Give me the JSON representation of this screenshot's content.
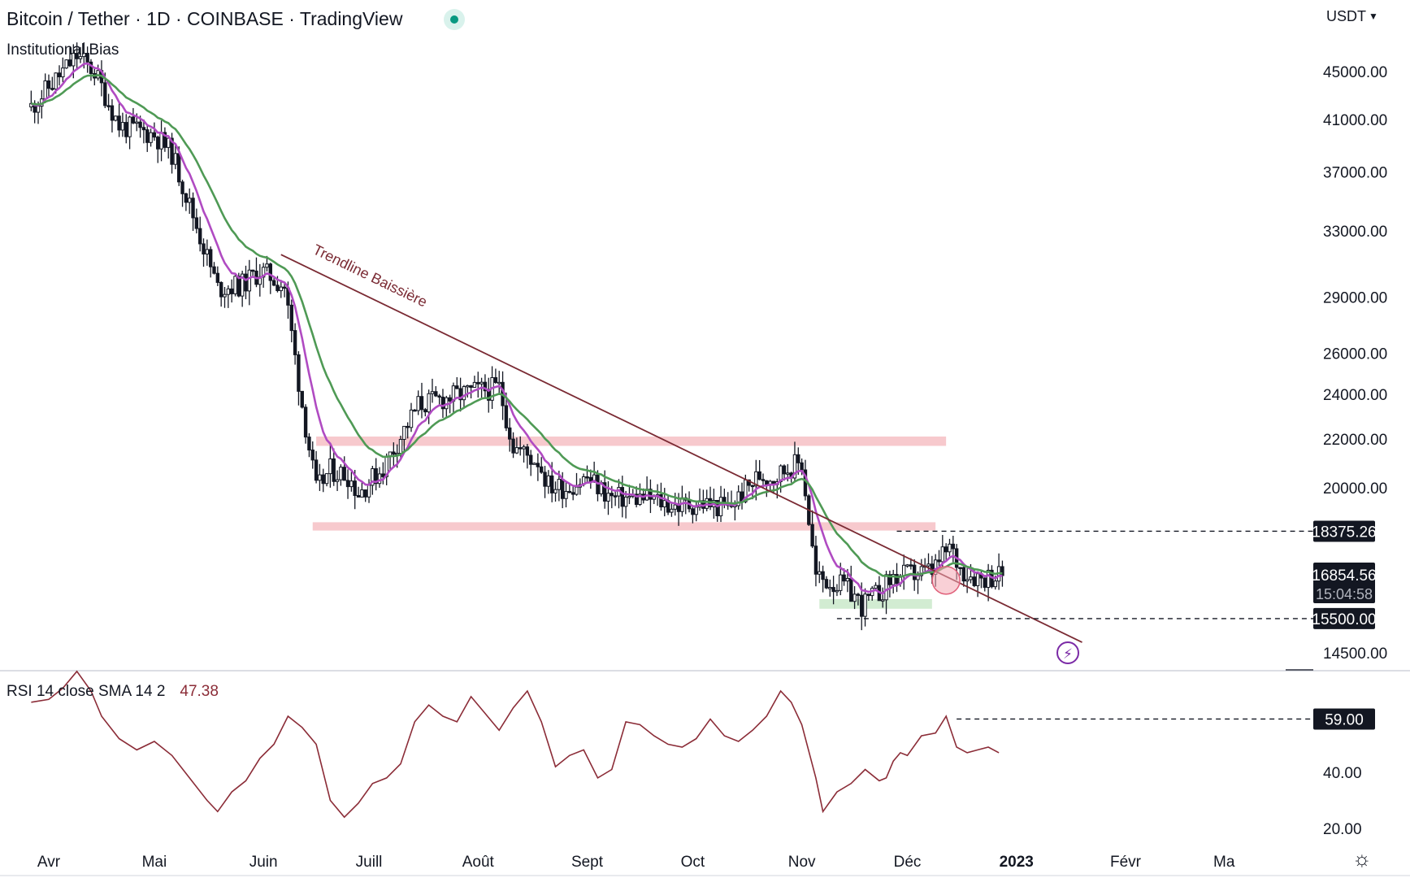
{
  "header": {
    "title": "Bitcoin / Tether · 1D · COINBASE · TradingView",
    "indicator": "Institutional Bias",
    "currency": "USDT"
  },
  "rsi_panel": {
    "label": "RSI 14 close SMA 14 2",
    "value": "47.38"
  },
  "icons": {
    "live": "live-status-dot",
    "currency_menu": "chevron-down-icon",
    "settings": "gear-icon",
    "flash": "lightning-icon"
  },
  "colors": {
    "candle": "#131722",
    "ema_fast": "#b04bc2",
    "ema_slow": "#4f9a55",
    "trendline": "#7a2a33",
    "resistance_zone": "#f7c9cd",
    "support_zone": "#d2ecd2",
    "rsi_line": "#8b2c37",
    "price_badge": "#131722"
  },
  "chart_data": [
    {
      "type": "candlestick",
      "title": "Bitcoin / Tether · 1D · COINBASE · TradingView",
      "scale": "log",
      "ylim": [
        14000,
        50000
      ],
      "y_ticks": [
        45000,
        41000,
        37000,
        33000,
        29000,
        26000,
        24000,
        22000,
        20000,
        14500
      ],
      "x_ticks": [
        "Avr",
        "Mai",
        "Juin",
        "Juill",
        "Août",
        "Sept",
        "Oct",
        "Nov",
        "Déc",
        "2023",
        "Févr",
        "Ma"
      ],
      "x_tick_days": [
        0,
        30,
        61,
        91,
        122,
        153,
        183,
        214,
        244,
        275,
        306,
        334
      ],
      "path_days": [
        -5,
        8,
        13,
        20,
        30,
        35,
        48,
        55,
        60,
        63,
        67,
        72,
        76,
        80,
        85,
        88,
        95,
        105,
        115,
        120,
        128,
        132,
        137,
        139,
        142,
        147,
        153,
        160,
        163,
        170,
        178,
        186,
        193,
        202,
        206,
        210,
        214,
        218,
        226,
        229,
        231,
        236,
        240,
        245,
        251,
        256,
        259,
        262,
        265,
        268,
        271
      ],
      "path_closes": [
        42000,
        46400,
        45000,
        40500,
        39800,
        38400,
        29500,
        29700,
        30500,
        30200,
        29600,
        23500,
        19900,
        20700,
        20500,
        19800,
        20800,
        23500,
        23900,
        24100,
        24300,
        21700,
        21200,
        21100,
        20100,
        20000,
        20400,
        19600,
        19600,
        19600,
        19300,
        19400,
        19200,
        20500,
        20400,
        20800,
        21000,
        16800,
        16500,
        16200,
        15900,
        16300,
        16800,
        16900,
        17000,
        17800,
        17100,
        16900,
        16800,
        16850,
        16855
      ],
      "emas": [
        {
          "period": 9,
          "color": "#b04bc2"
        },
        {
          "period": 21,
          "color": "#4f9a55"
        }
      ],
      "zones": [
        {
          "from": 21700,
          "to": 22100,
          "start_day": 76,
          "end_day": 255,
          "color": "#f7c9cd"
        },
        {
          "from": 18400,
          "to": 18700,
          "start_day": 75,
          "end_day": 252,
          "color": "#f7c9cd"
        },
        {
          "from": 15800,
          "to": 16100,
          "start_day": 219,
          "end_day": 251,
          "color": "#d2ecd2"
        }
      ],
      "trendline": {
        "label": "Trendline Baissière",
        "from": {
          "day": 66,
          "price": 31500
        },
        "to": {
          "day": 244,
          "price": 14800
        }
      },
      "levels": [
        {
          "price": 18375.26,
          "label": "18375.26",
          "start_day": 241
        },
        {
          "price": 15500.0,
          "label": "15500.00",
          "start_day": 224
        }
      ],
      "last_price": {
        "price": 16854.56,
        "label": "16854.56",
        "countdown": "15:04:58"
      },
      "highlight": {
        "day": 255,
        "price": 16700
      }
    },
    {
      "type": "line",
      "title": "RSI 14 close SMA 14 2",
      "ylim": [
        10,
        80
      ],
      "y_ticks": [
        40.0,
        20.0
      ],
      "x_days": [
        -5,
        0,
        4,
        8,
        12,
        15,
        20,
        25,
        30,
        35,
        40,
        45,
        48,
        52,
        56,
        60,
        64,
        68,
        72,
        76,
        80,
        84,
        88,
        92,
        96,
        100,
        104,
        108,
        112,
        116,
        120,
        124,
        128,
        132,
        136,
        140,
        144,
        148,
        152,
        156,
        160,
        164,
        168,
        172,
        176,
        180,
        184,
        188,
        192,
        196,
        200,
        204,
        208,
        211,
        214,
        218,
        220,
        224,
        228,
        232,
        236,
        238,
        240,
        242,
        244,
        248,
        252,
        255,
        258,
        261,
        264,
        267,
        270
      ],
      "values": [
        65,
        66,
        70,
        76,
        69,
        60,
        52,
        48,
        51,
        46,
        38,
        30,
        26,
        33,
        37,
        45,
        50,
        60,
        56,
        50,
        30,
        24,
        29,
        36,
        38,
        43,
        58,
        64,
        60,
        58,
        67,
        61,
        55,
        63,
        69,
        58,
        42,
        46,
        48,
        38,
        41,
        58,
        57,
        53,
        50,
        49,
        52,
        59,
        53,
        51,
        55,
        60,
        69,
        65,
        57,
        38,
        26,
        33,
        36,
        41,
        37,
        38,
        44,
        47,
        46,
        53,
        54,
        60,
        49,
        47,
        48,
        49,
        47
      ],
      "level": {
        "value": 59.0,
        "label": "59.00",
        "start_day": 258
      }
    }
  ]
}
